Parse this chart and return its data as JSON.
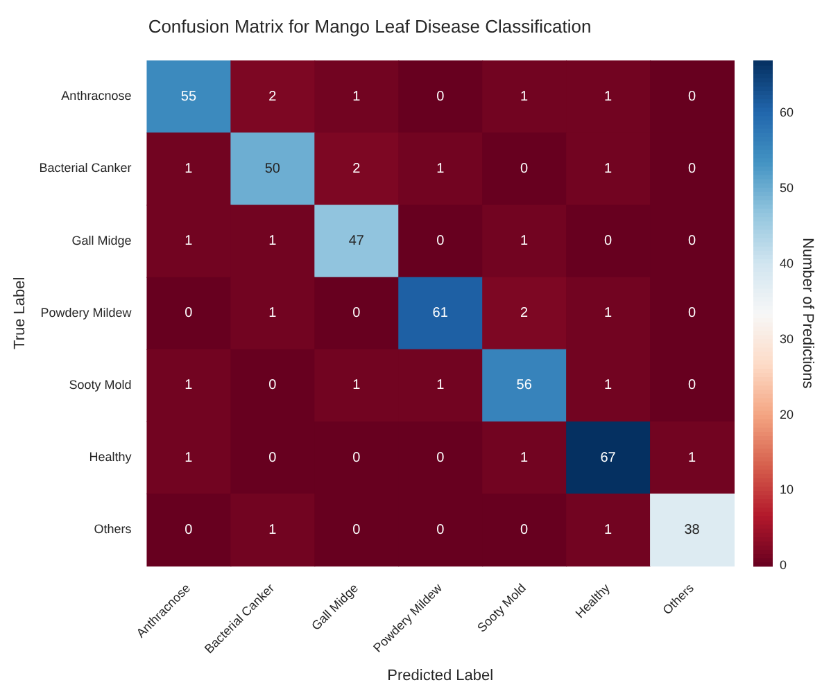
{
  "chart_data": {
    "type": "heatmap",
    "title": "Confusion Matrix for Mango Leaf Disease Classification",
    "xlabel": "Predicted Label",
    "ylabel": "True Label",
    "clabel": "Number of Predictions",
    "categories": [
      "Anthracnose",
      "Bacterial Canker",
      "Gall Midge",
      "Powdery Mildew",
      "Sooty Mold",
      "Healthy",
      "Others"
    ],
    "y_categories": [
      "Anthracnose",
      "Bacterial Canker",
      "Gall Midge",
      "Powdery Mildew",
      "Sooty Mold",
      "Healthy",
      "Others"
    ],
    "cells": [
      [
        55,
        2,
        1,
        0,
        1,
        1,
        0
      ],
      [
        1,
        50,
        2,
        1,
        0,
        1,
        0
      ],
      [
        1,
        1,
        47,
        0,
        1,
        0,
        0
      ],
      [
        0,
        1,
        0,
        61,
        2,
        1,
        0
      ],
      [
        1,
        0,
        1,
        1,
        56,
        1,
        0
      ],
      [
        1,
        0,
        0,
        0,
        1,
        67,
        1
      ],
      [
        0,
        1,
        0,
        0,
        0,
        1,
        38
      ]
    ],
    "clim": [
      0,
      67
    ],
    "cticks": [
      0,
      10,
      20,
      30,
      40,
      50,
      60
    ],
    "data_labels": true
  }
}
